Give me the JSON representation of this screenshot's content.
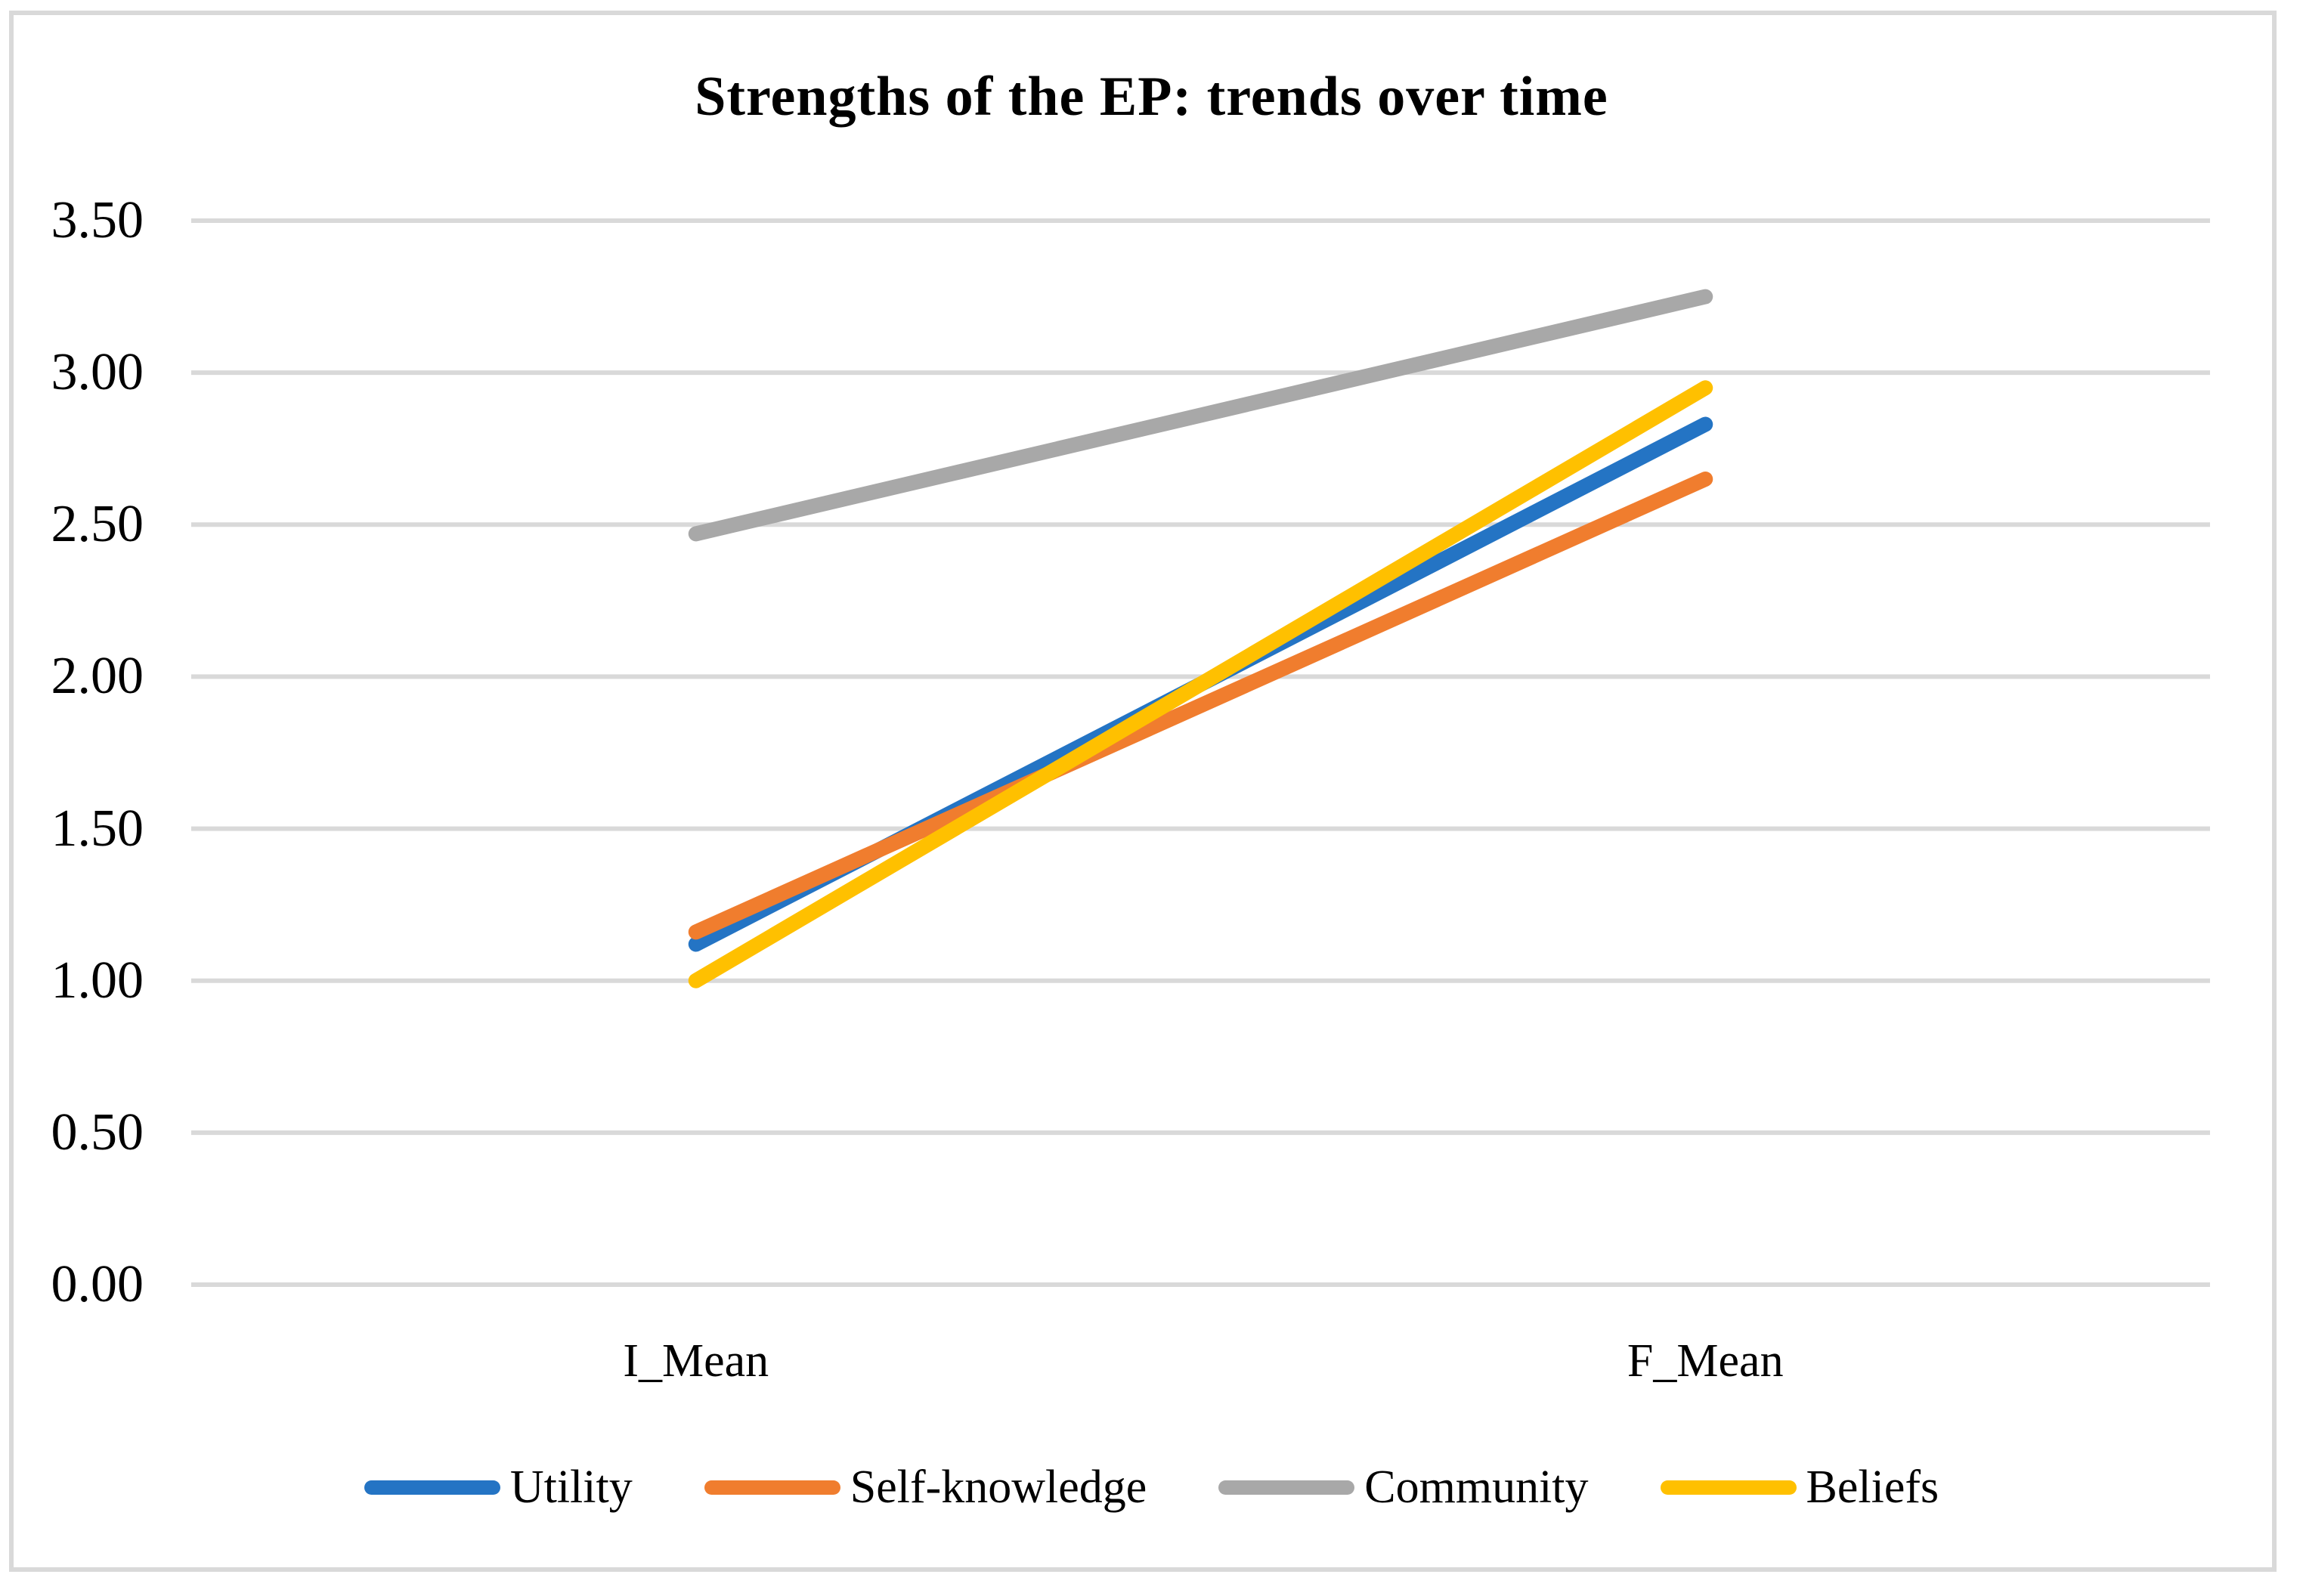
{
  "chart": {
    "title": "Strengths of the EP: trends over time"
  },
  "chart_data": {
    "type": "line",
    "title": "Strengths of the EP: trends over time",
    "categories": [
      "I_Mean",
      "F_Mean"
    ],
    "series": [
      {
        "name": "Utility",
        "color": "#2474C4",
        "values": [
          1.12,
          2.83
        ]
      },
      {
        "name": "Self-knowledge",
        "color": "#F07D2E",
        "values": [
          1.16,
          2.65
        ]
      },
      {
        "name": "Community",
        "color": "#A8A8A8",
        "values": [
          2.47,
          3.25
        ]
      },
      {
        "name": "Beliefs",
        "color": "#FFC000",
        "values": [
          1.0,
          2.95
        ]
      }
    ],
    "xlabel": "",
    "ylabel": "",
    "ylim": [
      0,
      3.5
    ],
    "ytick_step": 0.5,
    "yticks": [
      "3.50",
      "3.00",
      "2.50",
      "2.00",
      "1.50",
      "1.00",
      "0.50",
      "0.00"
    ],
    "grid": true,
    "gridline_color": "#D9D9D9",
    "border_color": "#D9D9D9",
    "background": "#FFFFFF",
    "legend_position": "bottom",
    "line_width": 20
  }
}
